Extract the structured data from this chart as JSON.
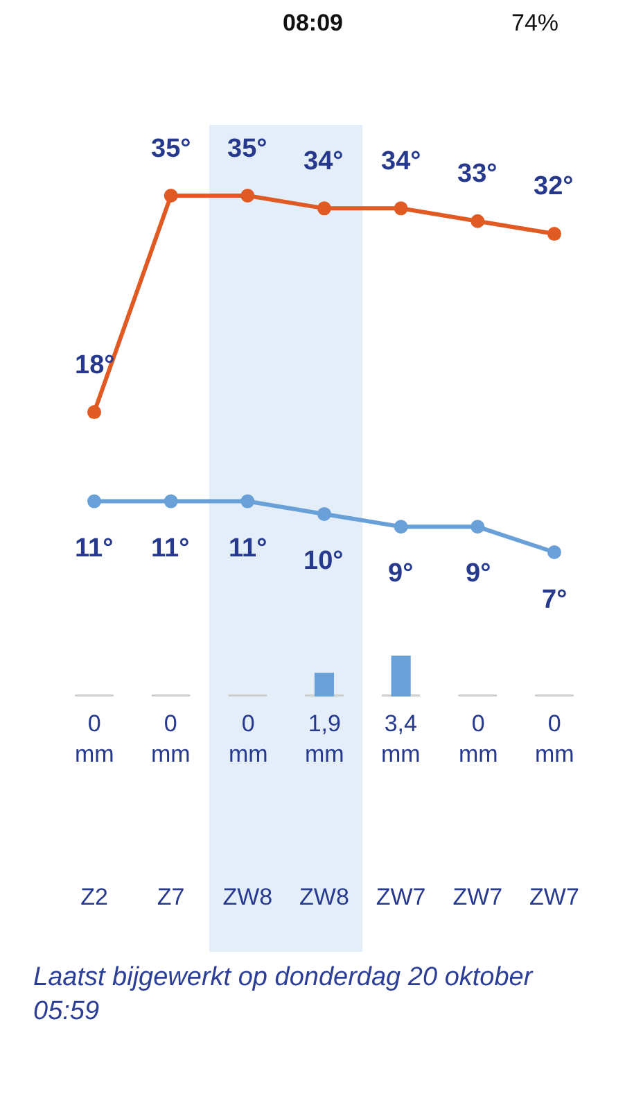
{
  "chart_data": [
    {
      "type": "line",
      "categories": [
        null,
        null,
        null,
        null,
        null,
        null,
        null
      ],
      "series": [
        {
          "color": "#e05a24",
          "values": [
            18,
            35,
            35,
            34,
            34,
            33,
            32
          ],
          "value_labels": [
            "18°",
            "35°",
            "35°",
            "34°",
            "34°",
            "33°",
            "32°"
          ]
        },
        {
          "color": "#6aa0d8",
          "values": [
            11,
            11,
            11,
            10,
            9,
            9,
            7
          ],
          "value_labels": [
            "11°",
            "11°",
            "11°",
            "10°",
            "9°",
            "9°",
            "7°"
          ]
        }
      ],
      "marker": "circle",
      "line_style": "solid",
      "grid": false,
      "tick_labels": false,
      "annotations": [
        "08:09",
        "74%"
      ]
    },
    {
      "type": "bar",
      "categories": [
        "Z2",
        "Z7",
        "ZW8",
        "ZW8",
        "ZW7",
        "ZW7",
        "ZW7"
      ],
      "colors": [
        "#cfcfcf",
        "#cfcfcf",
        "#cfcfcf",
        "#6aa0d8",
        "#6aa0d8",
        "#cfcfcf",
        "#cfcfcf"
      ],
      "values": [
        0,
        0,
        0,
        1.9,
        3.4,
        0,
        0
      ],
      "value_labels": [
        "0\nmm",
        "0\nmm",
        "0\nmm",
        "1,9\nmm",
        "3,4\nmm",
        "0\nmm",
        "0\nmm"
      ],
      "grid": false,
      "tick_labels": "x",
      "annotations": [
        "Laatst bijgewerkt op donderdag 20 oktober 05:59"
      ]
    }
  ]
}
